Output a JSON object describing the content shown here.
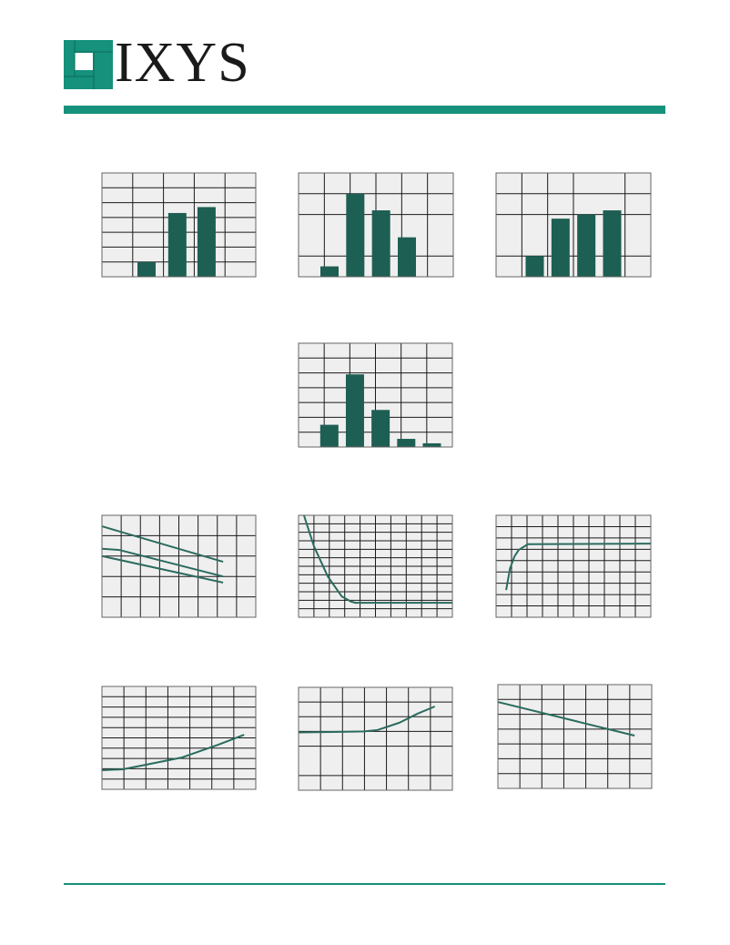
{
  "header": {
    "brand": "IXYS",
    "colors": {
      "brand_teal": "#15917c",
      "bar_fill": "#1e5f53",
      "grid_bg": "#efefef",
      "grid_line": "#1a1a1a"
    }
  },
  "chart_data": [
    {
      "type": "bar",
      "grid": true,
      "xlim": [
        0,
        5
      ],
      "ylim": [
        0,
        7
      ],
      "bars": [
        {
          "x": 1.45,
          "value": 1.0
        },
        {
          "x": 2.45,
          "value": 4.3
        },
        {
          "x": 3.4,
          "value": 4.7
        }
      ]
    },
    {
      "type": "bar",
      "grid": true,
      "xlim": [
        0,
        6
      ],
      "ylim": [
        0,
        5
      ],
      "bars": [
        {
          "x": 1.2,
          "value": 0.5
        },
        {
          "x": 2.2,
          "value": 4.0
        },
        {
          "x": 3.2,
          "value": 3.2
        },
        {
          "x": 4.2,
          "value": 1.9
        }
      ]
    },
    {
      "type": "bar",
      "grid": true,
      "xlim": [
        0,
        6
      ],
      "ylim": [
        0,
        5
      ],
      "bars": [
        {
          "x": 1.5,
          "value": 1.0
        },
        {
          "x": 2.5,
          "value": 2.8
        },
        {
          "x": 3.5,
          "value": 3.0
        },
        {
          "x": 4.5,
          "value": 3.2
        }
      ]
    },
    {
      "type": "bar",
      "grid": true,
      "xlim": [
        0,
        6
      ],
      "ylim": [
        0,
        7
      ],
      "bars": [
        {
          "x": 1.2,
          "value": 1.5
        },
        {
          "x": 2.2,
          "value": 4.9
        },
        {
          "x": 3.2,
          "value": 2.5
        },
        {
          "x": 4.2,
          "value": 0.55
        },
        {
          "x": 5.2,
          "value": 0.25
        }
      ]
    },
    {
      "type": "line",
      "grid": true,
      "xlim": [
        0,
        8
      ],
      "ylim": [
        0,
        5
      ],
      "series": [
        {
          "points": [
            [
              0,
              4.46
            ],
            [
              6.3,
              2.72
            ]
          ]
        },
        {
          "points": [
            [
              0,
              3.36
            ],
            [
              0.9,
              3.3
            ],
            [
              6.3,
              2.0
            ]
          ]
        },
        {
          "points": [
            [
              0,
              3.0
            ],
            [
              6.3,
              1.7
            ]
          ]
        }
      ]
    },
    {
      "type": "line",
      "grid": true,
      "xlim": [
        0,
        10
      ],
      "ylim": [
        0,
        12
      ],
      "series": [
        {
          "points": [
            [
              0.35,
              12
            ],
            [
              1.0,
              8.36
            ],
            [
              1.9,
              4.8
            ],
            [
              2.8,
              2.47
            ],
            [
              3.4,
              1.85
            ],
            [
              3.7,
              1.7
            ],
            [
              10,
              1.7
            ]
          ]
        }
      ]
    },
    {
      "type": "line",
      "grid": true,
      "xlim": [
        0,
        10
      ],
      "ylim": [
        0,
        9
      ],
      "series": [
        {
          "points": [
            [
              0.65,
              2.4
            ],
            [
              0.9,
              4.3
            ],
            [
              1.2,
              5.4
            ],
            [
              1.47,
              5.95
            ],
            [
              2.06,
              6.45
            ],
            [
              10,
              6.5
            ]
          ]
        }
      ]
    },
    {
      "type": "line",
      "grid": true,
      "xlim": [
        0,
        7
      ],
      "ylim": [
        0,
        10
      ],
      "series": [
        {
          "points": [
            [
              0,
              1.86
            ],
            [
              0.95,
              1.95
            ],
            [
              2,
              2.39
            ],
            [
              3.65,
              3.1
            ],
            [
              5.3,
              4.34
            ],
            [
              6.47,
              5.3
            ]
          ]
        }
      ]
    },
    {
      "type": "line",
      "grid": true,
      "xlim": [
        0,
        7
      ],
      "ylim": [
        0,
        7
      ],
      "series": [
        {
          "points": [
            [
              0,
              3.93
            ],
            [
              3,
              4.0
            ],
            [
              3.6,
              4.1
            ],
            [
              4.6,
              4.6
            ],
            [
              5.4,
              5.2
            ],
            [
              6.2,
              5.7
            ]
          ]
        }
      ]
    },
    {
      "type": "line",
      "grid": true,
      "xlim": [
        0,
        7
      ],
      "ylim": [
        0,
        7
      ],
      "series": [
        {
          "points": [
            [
              0,
              5.83
            ],
            [
              6.22,
              3.56
            ]
          ]
        }
      ]
    }
  ]
}
